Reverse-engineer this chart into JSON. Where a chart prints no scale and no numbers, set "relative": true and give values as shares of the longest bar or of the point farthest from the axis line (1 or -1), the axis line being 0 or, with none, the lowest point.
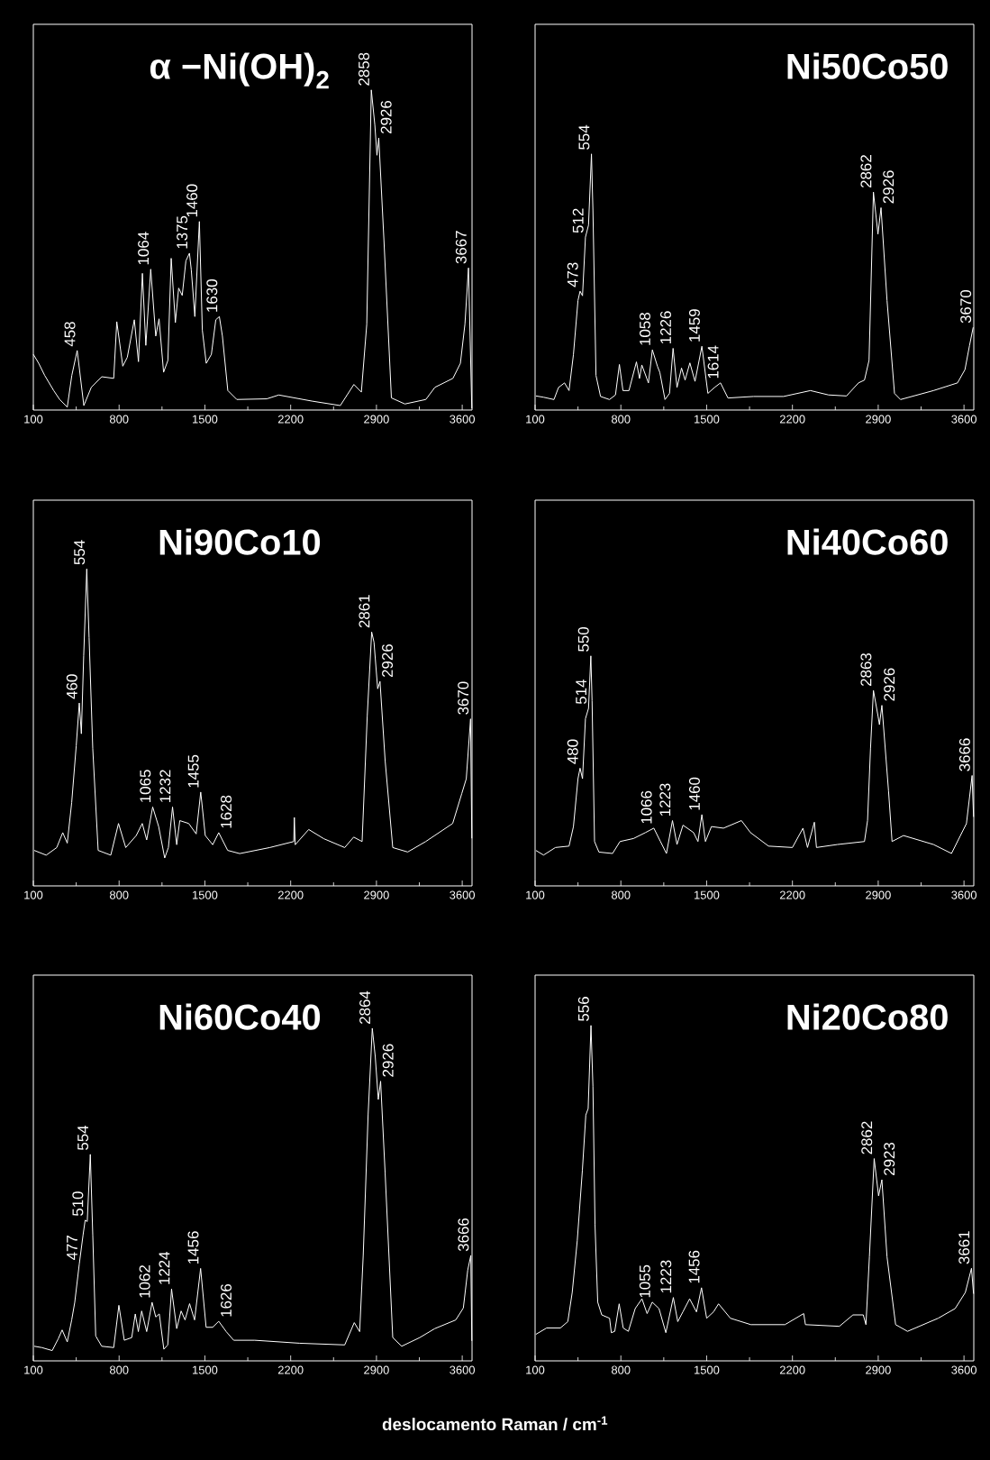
{
  "chart_data": [
    {
      "type": "line",
      "title": "α −Ni(OH)$_{2}$",
      "relative": true,
      "xlim": [
        100,
        3680
      ],
      "xticks": [
        100,
        {
          "value": 450,
          "label": null
        },
        800,
        {
          "value": 1150,
          "label": null
        },
        1500,
        {
          "value": 1850,
          "label": null
        },
        2200,
        {
          "value": 2550,
          "label": null
        },
        2900,
        {
          "value": 3250,
          "label": null
        },
        3600
      ],
      "x": [
        100,
        144,
        193,
        266,
        315,
        377,
        414,
        458,
        512,
        573,
        659,
        756,
        781,
        830,
        867,
        924,
        958,
        990,
        1018,
        1058,
        1099,
        1126,
        1163,
        1198,
        1225,
        1259,
        1286,
        1315,
        1345,
        1374,
        1389,
        1418,
        1455,
        1479,
        1511,
        1553,
        1589,
        1618,
        1643,
        1687,
        1760,
        2005,
        2103,
        2373,
        2605,
        2716,
        2777,
        2821,
        2858,
        2887,
        2904,
        2919,
        2961,
        3022,
        3132,
        3303,
        3377,
        3524,
        3585,
        3622,
        3651,
        3678
      ],
      "series": [
        {
          "color": "#ffffff",
          "values": [
            0.174,
            0.146,
            0.108,
            0.061,
            0.033,
            0.009,
            0.108,
            0.186,
            0.014,
            0.071,
            0.104,
            0.099,
            0.276,
            0.137,
            0.165,
            0.282,
            0.151,
            0.427,
            0.202,
            0.44,
            0.231,
            0.285,
            0.118,
            0.155,
            0.474,
            0.273,
            0.381,
            0.358,
            0.466,
            0.49,
            0.438,
            0.292,
            0.589,
            0.25,
            0.146,
            0.174,
            0.282,
            0.292,
            0.231,
            0.061,
            0.033,
            0.035,
            0.047,
            0.028,
            0.014,
            0.08,
            0.056,
            0.268,
            1.0,
            0.89,
            0.796,
            0.85,
            0.532,
            0.038,
            0.019,
            0.033,
            0.071,
            0.099,
            0.146,
            0.268,
            0.444,
            0.005
          ]
        }
      ],
      "annotations": [
        {
          "text": "458",
          "x": 458,
          "y": 0.186
        },
        {
          "text": "1064",
          "x": 1058,
          "y": 0.44
        },
        {
          "text": "1375",
          "x": 1374,
          "y": 0.49
        },
        {
          "text": "1460",
          "x": 1455,
          "y": 0.589
        },
        {
          "text": "1630",
          "x": 1618,
          "y": 0.292
        },
        {
          "text": "2858",
          "x": 2858,
          "y": 1.0
        },
        {
          "text": "2926",
          "x": 2919,
          "y": 0.85
        },
        {
          "text": "3667",
          "x": 3651,
          "y": 0.444
        }
      ]
    },
    {
      "type": "line",
      "title": "Ni50Co50",
      "relative": true,
      "xlim": [
        100,
        3680
      ],
      "xticks": [
        100,
        {
          "value": 450,
          "label": null
        },
        800,
        {
          "value": 1150,
          "label": null
        },
        1500,
        {
          "value": 1850,
          "label": null
        },
        2200,
        {
          "value": 2550,
          "label": null
        },
        2900,
        {
          "value": 3250,
          "label": null
        },
        3600
      ],
      "x": [
        107,
        169,
        254,
        291,
        340,
        377,
        413,
        450,
        467,
        487,
        511,
        536,
        560,
        572,
        597,
        634,
        707,
        756,
        788,
        817,
        866,
        927,
        952,
        971,
        1025,
        1057,
        1099,
        1118,
        1160,
        1197,
        1226,
        1258,
        1295,
        1324,
        1363,
        1405,
        1461,
        1510,
        1564,
        1613,
        1674,
        1882,
        2127,
        2347,
        2494,
        2641,
        2739,
        2788,
        2825,
        2861,
        2898,
        2923,
        2972,
        3033,
        3082,
        3351,
        3547,
        3608,
        3645,
        3675
      ],
      "series": [
        {
          "color": "#ffffff",
          "values": [
            0.055,
            0.05,
            0.041,
            0.088,
            0.106,
            0.076,
            0.217,
            0.428,
            0.464,
            0.446,
            0.675,
            0.722,
            1.0,
            0.781,
            0.135,
            0.053,
            0.041,
            0.059,
            0.178,
            0.076,
            0.076,
            0.188,
            0.123,
            0.176,
            0.106,
            0.235,
            0.17,
            0.147,
            0.041,
            0.065,
            0.241,
            0.088,
            0.164,
            0.117,
            0.184,
            0.112,
            0.249,
            0.065,
            0.088,
            0.106,
            0.047,
            0.053,
            0.053,
            0.076,
            0.059,
            0.055,
            0.106,
            0.117,
            0.194,
            0.851,
            0.687,
            0.79,
            0.428,
            0.065,
            0.041,
            0.076,
            0.106,
            0.158,
            0.252,
            0.323
          ]
        }
      ],
      "annotations": [
        {
          "text": "473",
          "x": 467,
          "y": 0.464
        },
        {
          "text": "512",
          "x": 511,
          "y": 0.675
        },
        {
          "text": "554",
          "x": 560,
          "y": 1.0
        },
        {
          "text": "1058",
          "x": 1057,
          "y": 0.235
        },
        {
          "text": "1226",
          "x": 1226,
          "y": 0.241
        },
        {
          "text": "1459",
          "x": 1461,
          "y": 0.249
        },
        {
          "text": "1614",
          "x": 1613,
          "y": 0.106
        },
        {
          "text": "2862",
          "x": 2861,
          "y": 0.851
        },
        {
          "text": "2926",
          "x": 2923,
          "y": 0.79
        },
        {
          "text": "3670",
          "x": 3675,
          "y": 0.323
        }
      ]
    },
    {
      "type": "line",
      "title": "Ni90Co10",
      "relative": true,
      "xlim": [
        100,
        3680
      ],
      "xticks": [
        100,
        {
          "value": 450,
          "label": null
        },
        800,
        {
          "value": 1150,
          "label": null
        },
        1500,
        {
          "value": 1850,
          "label": null
        },
        2200,
        {
          "value": 2550,
          "label": null
        },
        2900,
        {
          "value": 3250,
          "label": null
        },
        3600
      ],
      "x": [
        107,
        205,
        291,
        340,
        377,
        413,
        450,
        475,
        492,
        511,
        536,
        555,
        585,
        629,
        732,
        795,
        854,
        940,
        989,
        1025,
        1074,
        1123,
        1172,
        1202,
        1236,
        1270,
        1295,
        1368,
        1429,
        1466,
        1503,
        1564,
        1613,
        1686,
        1784,
        2029,
        2225,
        2230,
        2237,
        2347,
        2470,
        2641,
        2714,
        2783,
        2825,
        2861,
        2880,
        2910,
        2929,
        2971,
        3033,
        3155,
        3302,
        3522,
        3596,
        3633,
        3668,
        3678
      ],
      "series": [
        {
          "color": "#ffffff",
          "values": [
            0.112,
            0.097,
            0.121,
            0.168,
            0.135,
            0.263,
            0.442,
            0.577,
            0.48,
            0.726,
            1.0,
            0.783,
            0.433,
            0.112,
            0.097,
            0.197,
            0.121,
            0.159,
            0.197,
            0.145,
            0.249,
            0.187,
            0.088,
            0.121,
            0.249,
            0.13,
            0.206,
            0.197,
            0.164,
            0.296,
            0.159,
            0.13,
            0.168,
            0.112,
            0.102,
            0.121,
            0.14,
            0.216,
            0.13,
            0.178,
            0.149,
            0.121,
            0.154,
            0.14,
            0.537,
            0.801,
            0.769,
            0.622,
            0.645,
            0.395,
            0.121,
            0.107,
            0.14,
            0.197,
            0.291,
            0.338,
            0.527,
            0.15
          ]
        }
      ],
      "annotations": [
        {
          "text": "460",
          "x": 475,
          "y": 0.577
        },
        {
          "text": "554",
          "x": 536,
          "y": 1.0
        },
        {
          "text": "1065",
          "x": 1074,
          "y": 0.249
        },
        {
          "text": "1232",
          "x": 1236,
          "y": 0.249
        },
        {
          "text": "1455",
          "x": 1466,
          "y": 0.296
        },
        {
          "text": "1628",
          "x": 1613,
          "y": 0.168
        },
        {
          "text": "2861",
          "x": 2861,
          "y": 0.801
        },
        {
          "text": "2926",
          "x": 2929,
          "y": 0.645
        },
        {
          "text": "3670",
          "x": 3668,
          "y": 0.527
        }
      ]
    },
    {
      "type": "line",
      "title": "Ni40Co60",
      "relative": true,
      "xlim": [
        100,
        3680
      ],
      "xticks": [
        100,
        {
          "value": 450,
          "label": null
        },
        800,
        {
          "value": 1150,
          "label": null
        },
        1500,
        {
          "value": 1850,
          "label": null
        },
        2200,
        {
          "value": 2550,
          "label": null
        },
        2900,
        {
          "value": 3250,
          "label": null
        },
        3600
      ],
      "x": [
        107,
        169,
        266,
        377,
        413,
        450,
        467,
        487,
        511,
        536,
        555,
        565,
        585,
        621,
        732,
        793,
        903,
        1001,
        1069,
        1123,
        1172,
        1221,
        1258,
        1307,
        1393,
        1429,
        1461,
        1490,
        1539,
        1637,
        1784,
        1857,
        2005,
        2200,
        2286,
        2323,
        2379,
        2396,
        2567,
        2788,
        2813,
        2837,
        2861,
        2898,
        2910,
        2930,
        2984,
        3013,
        3106,
        3351,
        3498,
        3571,
        3620,
        3666,
        3678
      ],
      "series": [
        {
          "color": "#ffffff",
          "values": [
            0.154,
            0.134,
            0.167,
            0.173,
            0.258,
            0.466,
            0.512,
            0.466,
            0.727,
            0.772,
            1.0,
            0.805,
            0.193,
            0.147,
            0.141,
            0.193,
            0.206,
            0.232,
            0.251,
            0.193,
            0.141,
            0.284,
            0.18,
            0.264,
            0.232,
            0.193,
            0.31,
            0.193,
            0.258,
            0.251,
            0.284,
            0.232,
            0.173,
            0.167,
            0.251,
            0.167,
            0.277,
            0.167,
            0.18,
            0.193,
            0.284,
            0.596,
            0.85,
            0.74,
            0.701,
            0.785,
            0.414,
            0.193,
            0.219,
            0.18,
            0.141,
            0.219,
            0.271,
            0.48,
            0.3
          ]
        }
      ],
      "annotations": [
        {
          "text": "480",
          "x": 467,
          "y": 0.512
        },
        {
          "text": "514",
          "x": 536,
          "y": 0.772
        },
        {
          "text": "550",
          "x": 555,
          "y": 1.0
        },
        {
          "text": "1066",
          "x": 1069,
          "y": 0.251
        },
        {
          "text": "1223",
          "x": 1221,
          "y": 0.284
        },
        {
          "text": "1460",
          "x": 1461,
          "y": 0.31
        },
        {
          "text": "2863",
          "x": 2861,
          "y": 0.85
        },
        {
          "text": "2926",
          "x": 2930,
          "y": 0.785
        },
        {
          "text": "3666",
          "x": 3666,
          "y": 0.48
        }
      ]
    },
    {
      "type": "line",
      "title": "Ni60Co40",
      "xlabel": "deslocamento Raman / cm$^{-1}$",
      "relative": true,
      "xlim": [
        100,
        3680
      ],
      "xticks": [
        100,
        {
          "value": 450,
          "label": null
        },
        800,
        {
          "value": 1150,
          "label": null
        },
        1500,
        {
          "value": 1850,
          "label": null
        },
        2200,
        {
          "value": 2550,
          "label": null
        },
        2900,
        {
          "value": 3250,
          "label": null
        },
        3600
      ],
      "x": [
        107,
        169,
        254,
        303,
        335,
        377,
        413,
        438,
        475,
        506,
        523,
        540,
        565,
        585,
        609,
        658,
        756,
        798,
        842,
        903,
        932,
        957,
        984,
        1025,
        1069,
        1099,
        1128,
        1165,
        1197,
        1228,
        1270,
        1306,
        1338,
        1375,
        1416,
        1465,
        1510,
        1563,
        1613,
        1674,
        1735,
        1907,
        2274,
        2641,
        2719,
        2763,
        2792,
        2832,
        2866,
        2890,
        2915,
        2934,
        2971,
        3033,
        3106,
        3253,
        3376,
        3547,
        3609,
        3645,
        3670,
        3678
      ],
      "series": [
        {
          "color": "#ffffff",
          "values": [
            0.044,
            0.04,
            0.031,
            0.066,
            0.093,
            0.057,
            0.123,
            0.176,
            0.291,
            0.379,
            0.423,
            0.419,
            0.621,
            0.379,
            0.075,
            0.044,
            0.04,
            0.167,
            0.062,
            0.07,
            0.141,
            0.088,
            0.15,
            0.088,
            0.176,
            0.132,
            0.141,
            0.035,
            0.048,
            0.216,
            0.097,
            0.15,
            0.123,
            0.172,
            0.123,
            0.278,
            0.101,
            0.101,
            0.119,
            0.088,
            0.062,
            0.062,
            0.053,
            0.048,
            0.115,
            0.088,
            0.317,
            0.74,
            1.0,
            0.916,
            0.786,
            0.841,
            0.564,
            0.07,
            0.044,
            0.07,
            0.097,
            0.123,
            0.159,
            0.273,
            0.317,
            0.06
          ]
        }
      ],
      "annotations": [
        {
          "text": "477",
          "x": 475,
          "y": 0.291
        },
        {
          "text": "510",
          "x": 523,
          "y": 0.423
        },
        {
          "text": "554",
          "x": 565,
          "y": 0.621
        },
        {
          "text": "1062",
          "x": 1069,
          "y": 0.176
        },
        {
          "text": "1224",
          "x": 1228,
          "y": 0.216
        },
        {
          "text": "1456",
          "x": 1465,
          "y": 0.278
        },
        {
          "text": "1626",
          "x": 1613,
          "y": 0.119
        },
        {
          "text": "2864",
          "x": 2866,
          "y": 1.0
        },
        {
          "text": "2926",
          "x": 2934,
          "y": 0.841
        },
        {
          "text": "3666",
          "x": 3670,
          "y": 0.317
        }
      ]
    },
    {
      "type": "line",
      "title": "Ni20Co80",
      "relative": true,
      "xlim": [
        100,
        3680
      ],
      "xticks": [
        100,
        {
          "value": 450,
          "label": null
        },
        800,
        {
          "value": 1150,
          "label": null
        },
        1500,
        {
          "value": 1850,
          "label": null
        },
        2200,
        {
          "value": 2550,
          "label": null
        },
        2900,
        {
          "value": 3250,
          "label": null
        },
        3600
      ],
      "x": [
        106,
        194,
        306,
        367,
        403,
        444,
        486,
        514,
        533,
        556,
        572,
        589,
        611,
        644,
        708,
        722,
        750,
        786,
        819,
        861,
        917,
        972,
        1014,
        1056,
        1111,
        1167,
        1228,
        1264,
        1306,
        1361,
        1417,
        1458,
        1500,
        1556,
        1597,
        1694,
        1861,
        2139,
        2292,
        2306,
        2583,
        2694,
        2778,
        2800,
        2828,
        2867,
        2903,
        2930,
        2972,
        3042,
        3139,
        3389,
        3528,
        3611,
        3661,
        3678
      ],
      "series": [
        {
          "color": "#ffffff",
          "values": [
            0.079,
            0.098,
            0.098,
            0.117,
            0.204,
            0.358,
            0.569,
            0.733,
            0.752,
            1.0,
            0.819,
            0.406,
            0.175,
            0.137,
            0.127,
            0.084,
            0.088,
            0.17,
            0.098,
            0.088,
            0.156,
            0.185,
            0.141,
            0.175,
            0.156,
            0.084,
            0.189,
            0.117,
            0.146,
            0.185,
            0.146,
            0.218,
            0.127,
            0.146,
            0.17,
            0.127,
            0.108,
            0.108,
            0.141,
            0.108,
            0.103,
            0.137,
            0.137,
            0.108,
            0.31,
            0.603,
            0.492,
            0.54,
            0.31,
            0.108,
            0.088,
            0.127,
            0.156,
            0.204,
            0.276,
            0.2
          ]
        }
      ],
      "annotations": [
        {
          "text": "556",
          "x": 556,
          "y": 1.0
        },
        {
          "text": "1055",
          "x": 1056,
          "y": 0.175
        },
        {
          "text": "1223",
          "x": 1228,
          "y": 0.189
        },
        {
          "text": "1456",
          "x": 1458,
          "y": 0.218
        },
        {
          "text": "2862",
          "x": 2867,
          "y": 0.603
        },
        {
          "text": "2923",
          "x": 2930,
          "y": 0.54
        },
        {
          "text": "3661",
          "x": 3661,
          "y": 0.276
        }
      ]
    }
  ]
}
